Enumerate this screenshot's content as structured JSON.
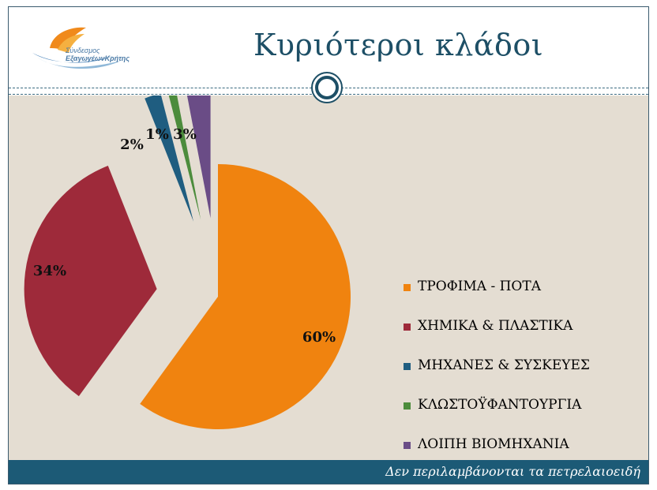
{
  "slide": {
    "title": "Κυριότεροι κλάδοι",
    "logo": {
      "line1": "Σύνδεσμος",
      "line2": "ΕξαγωγέωνΚρήτης"
    },
    "footer_note": "Δεν περιλαμβάνονται τα πετρελαιοειδή"
  },
  "colors": {
    "title": "#1d4f66",
    "frame": "#3a5a6e",
    "background": "#e4ddd2",
    "footer": "#1c5a76"
  },
  "icons": {
    "logo": "flame-leaf-logo-icon",
    "ornament": "double-circle-ornament-icon"
  },
  "chart_data": {
    "type": "pie",
    "exploded": true,
    "legend_position": "right",
    "categories": [
      "ΤΡΟΦΙΜΑ - ΠΟΤΑ",
      "ΧΗΜΙΚΑ & ΠΛΑΣΤΙΚΑ",
      "ΜΗΧΑΝΕΣ & ΣΥΣΚΕΥΕΣ",
      "ΚΛΩΣΤΟΫΦΑΝΤΟΥΡΓΙΑ",
      "ΛΟΙΠΗ ΒΙΟΜΗΧΑΝΙΑ"
    ],
    "values": [
      60,
      34,
      2,
      1,
      3
    ],
    "data_labels": [
      "60%",
      "34%",
      "2%",
      "1%",
      "3%"
    ],
    "colors": [
      "#f0830f",
      "#9e2a3a",
      "#1f5d80",
      "#4c8c3c",
      "#6a4c86"
    ]
  }
}
